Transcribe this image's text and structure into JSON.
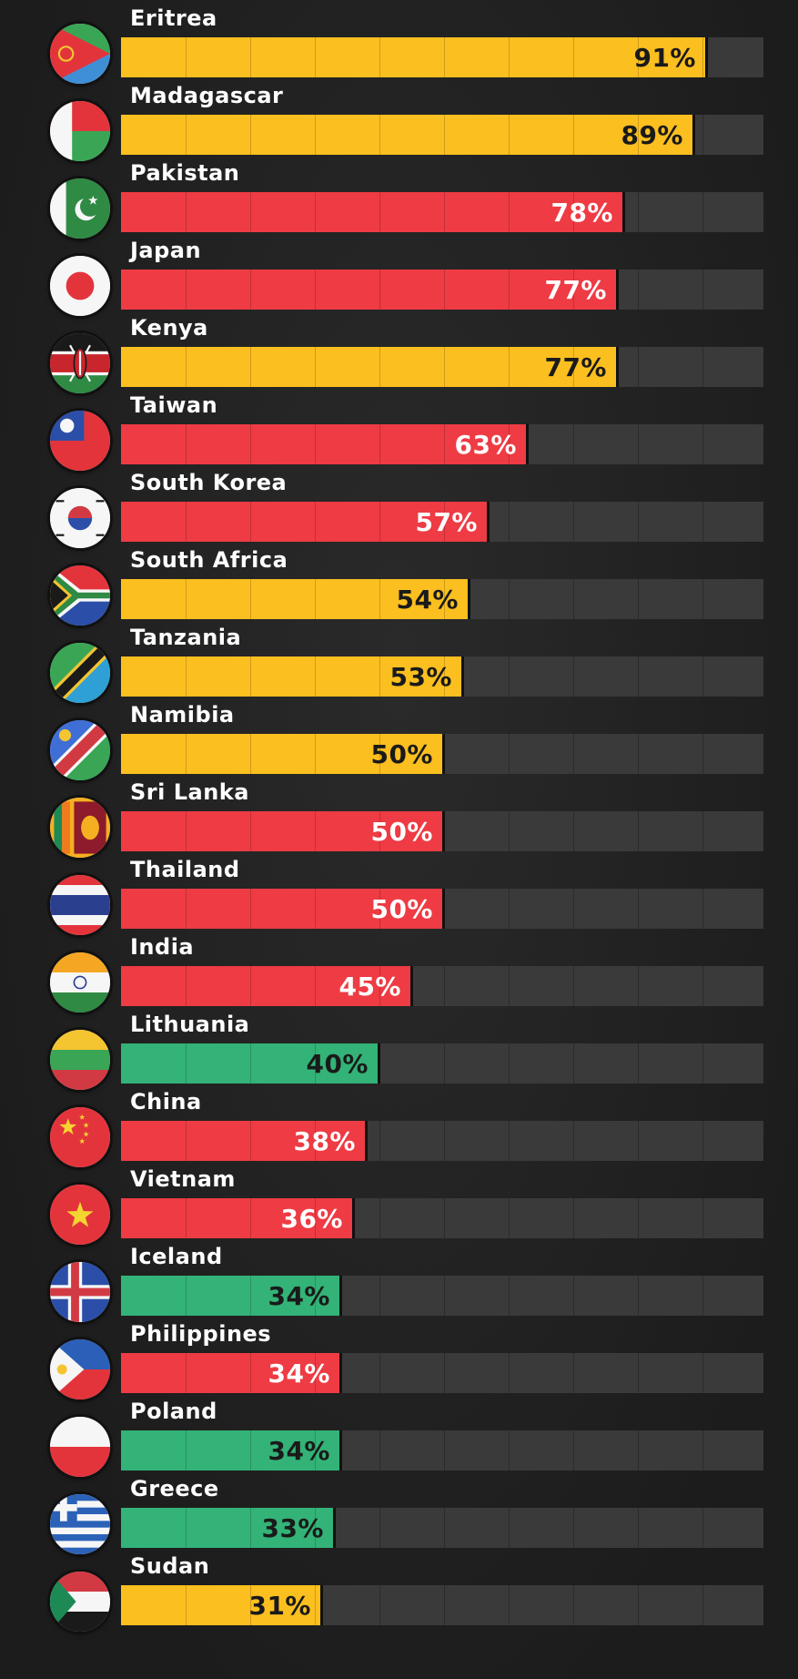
{
  "chart_data": {
    "type": "bar",
    "orientation": "horizontal",
    "xlim": [
      0,
      100
    ],
    "grid": true,
    "legend": "none",
    "colors": {
      "yellow": "#fbbf1f",
      "red": "#ee3b44",
      "green": "#33b377",
      "track": "#3a3a3a",
      "background": "#1f1f1f"
    },
    "categories": [
      "Eritrea",
      "Madagascar",
      "Pakistan",
      "Japan",
      "Kenya",
      "Taiwan",
      "South Korea",
      "South Africa",
      "Tanzania",
      "Namibia",
      "Sri Lanka",
      "Thailand",
      "India",
      "Lithuania",
      "China",
      "Vietnam",
      "Iceland",
      "Philippines",
      "Poland",
      "Greece",
      "Sudan"
    ],
    "values": [
      91,
      89,
      78,
      77,
      77,
      63,
      57,
      54,
      53,
      50,
      50,
      50,
      45,
      40,
      38,
      36,
      34,
      34,
      34,
      33,
      31
    ],
    "labels": [
      "91%",
      "89%",
      "78%",
      "77%",
      "77%",
      "63%",
      "57%",
      "54%",
      "53%",
      "50%",
      "50%",
      "50%",
      "45%",
      "40%",
      "38%",
      "36%",
      "34%",
      "34%",
      "34%",
      "33%",
      "31%"
    ],
    "bar_colors": [
      "yellow",
      "yellow",
      "red",
      "red",
      "yellow",
      "red",
      "red",
      "yellow",
      "yellow",
      "yellow",
      "red",
      "red",
      "red",
      "green",
      "red",
      "red",
      "green",
      "red",
      "green",
      "green",
      "yellow"
    ],
    "flags": [
      "eritrea-flag-icon",
      "madagascar-flag-icon",
      "pakistan-flag-icon",
      "japan-flag-icon",
      "kenya-flag-icon",
      "taiwan-flag-icon",
      "south-korea-flag-icon",
      "south-africa-flag-icon",
      "tanzania-flag-icon",
      "namibia-flag-icon",
      "sri-lanka-flag-icon",
      "thailand-flag-icon",
      "india-flag-icon",
      "lithuania-flag-icon",
      "china-flag-icon",
      "vietnam-flag-icon",
      "iceland-flag-icon",
      "philippines-flag-icon",
      "poland-flag-icon",
      "greece-flag-icon",
      "sudan-flag-icon"
    ]
  }
}
